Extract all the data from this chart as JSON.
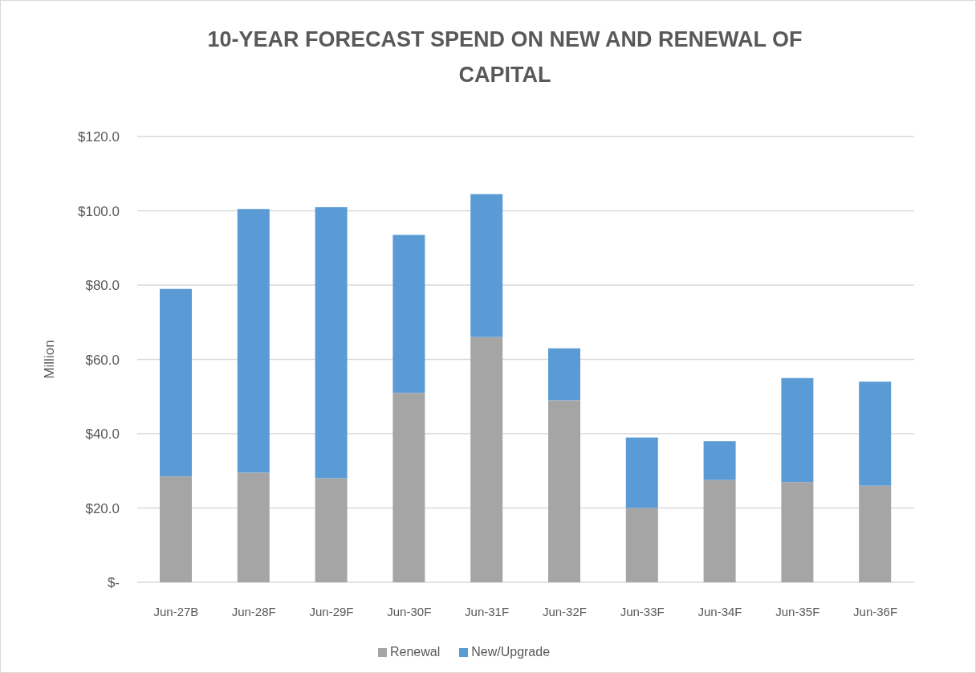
{
  "chart_data": {
    "type": "bar",
    "title": "10-YEAR FORECAST SPEND ON NEW AND RENEWAL OF CAPITAL",
    "ylabel": "Million",
    "categories": [
      "Jun-27B",
      "Jun-28F",
      "Jun-29F",
      "Jun-30F",
      "Jun-31F",
      "Jun-32F",
      "Jun-33F",
      "Jun-34F",
      "Jun-35F",
      "Jun-36F"
    ],
    "series": [
      {
        "name": "Renewal",
        "color": "#a5a5a5",
        "values": [
          28.5,
          29.5,
          28,
          51,
          66,
          49,
          20,
          27.5,
          27,
          26
        ]
      },
      {
        "name": "New/Upgrade",
        "color": "#5b9bd5",
        "values": [
          50.5,
          71,
          73,
          42.5,
          38.5,
          14,
          19,
          10.5,
          28,
          28
        ]
      }
    ],
    "stacked": true,
    "ylim": [
      0,
      120
    ],
    "yticks": [
      {
        "value": 0,
        "label": "$-"
      },
      {
        "value": 20,
        "label": "$20.0"
      },
      {
        "value": 40,
        "label": "$40.0"
      },
      {
        "value": 60,
        "label": "$60.0"
      },
      {
        "value": 80,
        "label": "$80.0"
      },
      {
        "value": 100,
        "label": "$100.0"
      },
      {
        "value": 120,
        "label": "$120.0"
      }
    ],
    "grid": "y",
    "legend": "bottom"
  }
}
